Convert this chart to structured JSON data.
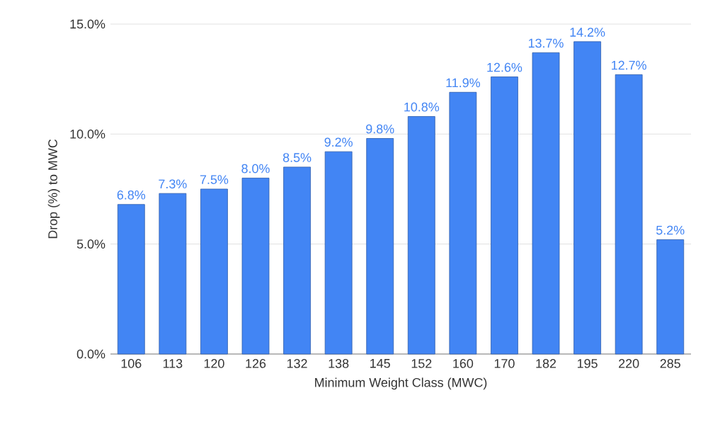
{
  "chart_data": {
    "type": "bar",
    "xlabel": "Minimum Weight Class (MWC)",
    "ylabel": "Drop (%) to MWC",
    "categories": [
      "106",
      "113",
      "120",
      "126",
      "132",
      "138",
      "145",
      "152",
      "160",
      "170",
      "182",
      "195",
      "220",
      "285"
    ],
    "values": [
      6.8,
      7.3,
      7.5,
      8.0,
      8.5,
      9.2,
      9.8,
      10.8,
      11.9,
      12.6,
      13.7,
      14.2,
      12.7,
      5.2
    ],
    "value_labels": [
      "6.8%",
      "7.3%",
      "7.5%",
      "8.0%",
      "8.5%",
      "9.2%",
      "9.8%",
      "10.8%",
      "11.9%",
      "12.6%",
      "13.7%",
      "14.2%",
      "12.7%",
      "5.2%"
    ],
    "color": "#4285f4",
    "ylim": [
      0,
      15
    ],
    "yticks": [
      {
        "value": 0,
        "label": "0.0%"
      },
      {
        "value": 5,
        "label": "5.0%"
      },
      {
        "value": 10,
        "label": "10.0%"
      },
      {
        "value": 15,
        "label": "15.0%"
      }
    ],
    "grid": "y"
  }
}
